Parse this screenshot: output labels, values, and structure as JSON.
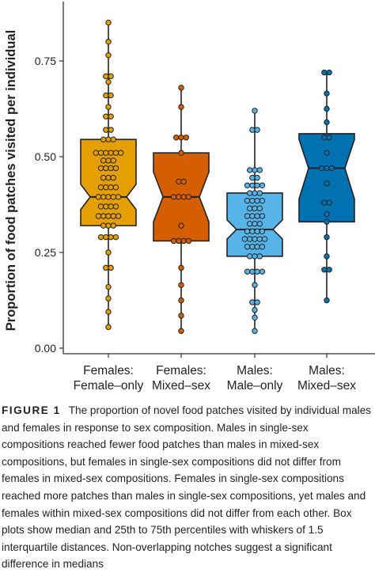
{
  "chart_data": {
    "type": "box",
    "ylabel": "Proportion of food patches visited per individual",
    "ylim": [
      0,
      0.87
    ],
    "yticks": [
      "0.00",
      "0.25",
      "0.50",
      "0.75"
    ],
    "ytick_values": [
      0,
      0.25,
      0.5,
      0.75
    ],
    "categories": [
      {
        "line1": "Females:",
        "line2": "Female–only"
      },
      {
        "line1": "Females:",
        "line2": "Mixed–sex"
      },
      {
        "line1": "Males:",
        "line2": "Male–only"
      },
      {
        "line1": "Males:",
        "line2": "Mixed–sex"
      }
    ],
    "boxes": [
      {
        "color": "#E69F00",
        "whisker_low": 0.055,
        "q1": 0.32,
        "median": 0.395,
        "q3": 0.545,
        "whisker_high": 0.85,
        "notch_low": 0.362,
        "notch_high": 0.428,
        "points": [
          0.055,
          0.095,
          0.13,
          0.16,
          0.21,
          0.21,
          0.25,
          0.29,
          0.29,
          0.29,
          0.29,
          0.32,
          0.32,
          0.32,
          0.345,
          0.345,
          0.345,
          0.345,
          0.345,
          0.37,
          0.37,
          0.37,
          0.37,
          0.395,
          0.395,
          0.395,
          0.395,
          0.395,
          0.42,
          0.42,
          0.42,
          0.42,
          0.445,
          0.445,
          0.445,
          0.47,
          0.47,
          0.47,
          0.47,
          0.49,
          0.49,
          0.49,
          0.51,
          0.51,
          0.51,
          0.51,
          0.51,
          0.51,
          0.545,
          0.545,
          0.545,
          0.57,
          0.57,
          0.605,
          0.605,
          0.63,
          0.66,
          0.66,
          0.695,
          0.71,
          0.71,
          0.765,
          0.8,
          0.85
        ]
      },
      {
        "color": "#D55E00",
        "whisker_low": 0.045,
        "q1": 0.28,
        "median": 0.395,
        "q3": 0.51,
        "whisker_high": 0.68,
        "notch_low": 0.33,
        "notch_high": 0.46,
        "points": [
          0.045,
          0.085,
          0.125,
          0.165,
          0.21,
          0.28,
          0.28,
          0.28,
          0.28,
          0.32,
          0.395,
          0.395,
          0.395,
          0.395,
          0.435,
          0.435,
          0.51,
          0.55,
          0.55,
          0.55,
          0.63,
          0.68
        ]
      },
      {
        "color": "#56B4E9",
        "whisker_low": 0.045,
        "q1": 0.24,
        "median": 0.31,
        "q3": 0.405,
        "whisker_high": 0.62,
        "notch_low": 0.285,
        "notch_high": 0.335,
        "points": [
          0.045,
          0.08,
          0.1,
          0.12,
          0.12,
          0.165,
          0.2,
          0.2,
          0.2,
          0.2,
          0.24,
          0.24,
          0.24,
          0.265,
          0.265,
          0.265,
          0.265,
          0.285,
          0.285,
          0.285,
          0.285,
          0.285,
          0.305,
          0.305,
          0.305,
          0.305,
          0.325,
          0.325,
          0.325,
          0.345,
          0.345,
          0.345,
          0.345,
          0.365,
          0.365,
          0.365,
          0.385,
          0.385,
          0.385,
          0.385,
          0.405,
          0.405,
          0.405,
          0.425,
          0.425,
          0.425,
          0.425,
          0.445,
          0.445,
          0.465,
          0.465,
          0.465,
          0.57,
          0.57,
          0.62
        ]
      },
      {
        "color": "#0072B2",
        "whisker_low": 0.125,
        "q1": 0.33,
        "median": 0.47,
        "q3": 0.56,
        "whisker_high": 0.72,
        "notch_low": 0.39,
        "notch_high": 0.545,
        "points": [
          0.125,
          0.205,
          0.205,
          0.24,
          0.29,
          0.33,
          0.35,
          0.38,
          0.38,
          0.43,
          0.47,
          0.47,
          0.47,
          0.51,
          0.55,
          0.55,
          0.59,
          0.625,
          0.665,
          0.72,
          0.72
        ]
      }
    ]
  },
  "caption": {
    "label": "FIGURE 1",
    "text": "The proportion of novel food patches visited by individual males and females in response to sex composition. Males in single-sex compositions reached fewer food patches than males in mixed-sex compositions, but females in single-sex compositions did not differ from females in mixed-sex compositions. Females in single-sex compositions reached more patches than males in single-sex compositions, yet males and females within mixed-sex compositions did not differ from each other. Box plots show median and 25th to 75th percentiles with whiskers of 1.5 interquartile distances. Non-overlapping notches suggest a significant difference in medians"
  }
}
